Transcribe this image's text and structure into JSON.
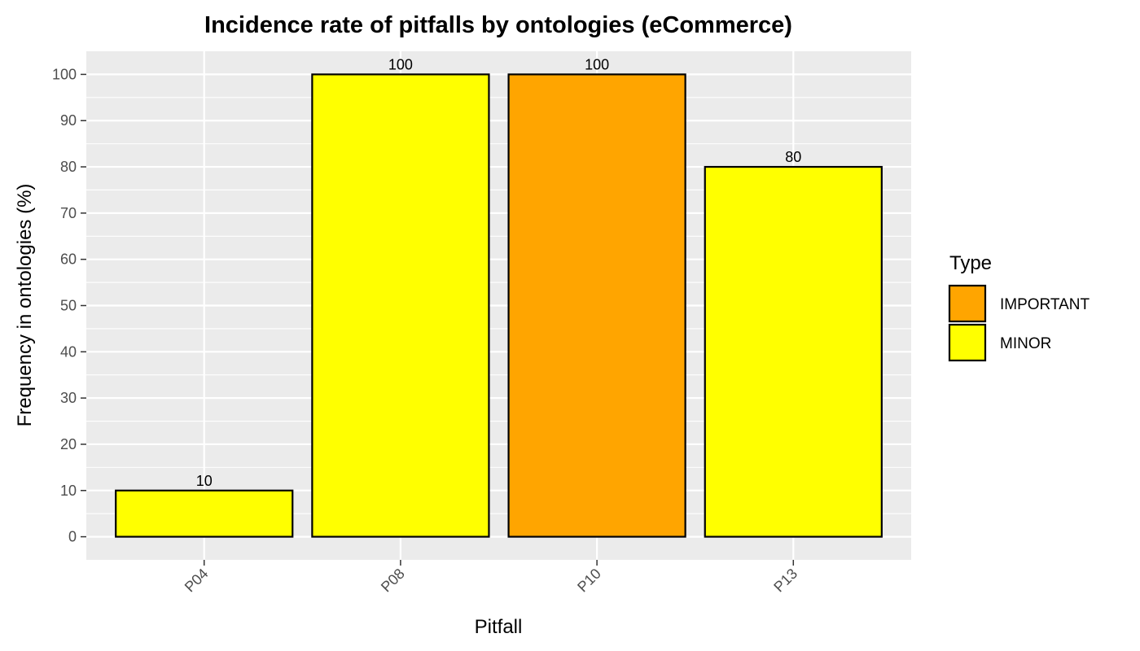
{
  "chart_data": {
    "type": "bar",
    "title": "Incidence rate of pitfalls by ontologies (eCommerce)",
    "xlabel": "Pitfall",
    "ylabel": "Frequency in ontologies (%)",
    "categories": [
      "P04",
      "P08",
      "P10",
      "P13"
    ],
    "values": [
      10,
      100,
      100,
      80
    ],
    "data_labels": [
      "10",
      "100",
      "100",
      "80"
    ],
    "types": [
      "MINOR",
      "MINOR",
      "IMPORTANT",
      "MINOR"
    ],
    "ylim": [
      -5,
      105
    ],
    "yticks": [
      0,
      10,
      20,
      30,
      40,
      50,
      60,
      70,
      80,
      90,
      100
    ],
    "ytick_labels": [
      "0",
      "10",
      "20",
      "30",
      "40",
      "50",
      "60",
      "70",
      "80",
      "90",
      "100"
    ],
    "grid": true,
    "legend": {
      "title": "Type",
      "position": "right",
      "entries": [
        {
          "label": "IMPORTANT",
          "color": "#FFA500"
        },
        {
          "label": "MINOR",
          "color": "#FFFF00"
        }
      ]
    },
    "colors": {
      "IMPORTANT": "#FFA500",
      "MINOR": "#FFFF00",
      "panel": "#EBEBEB",
      "grid": "#FFFFFF",
      "bar_outline": "#000000"
    }
  }
}
